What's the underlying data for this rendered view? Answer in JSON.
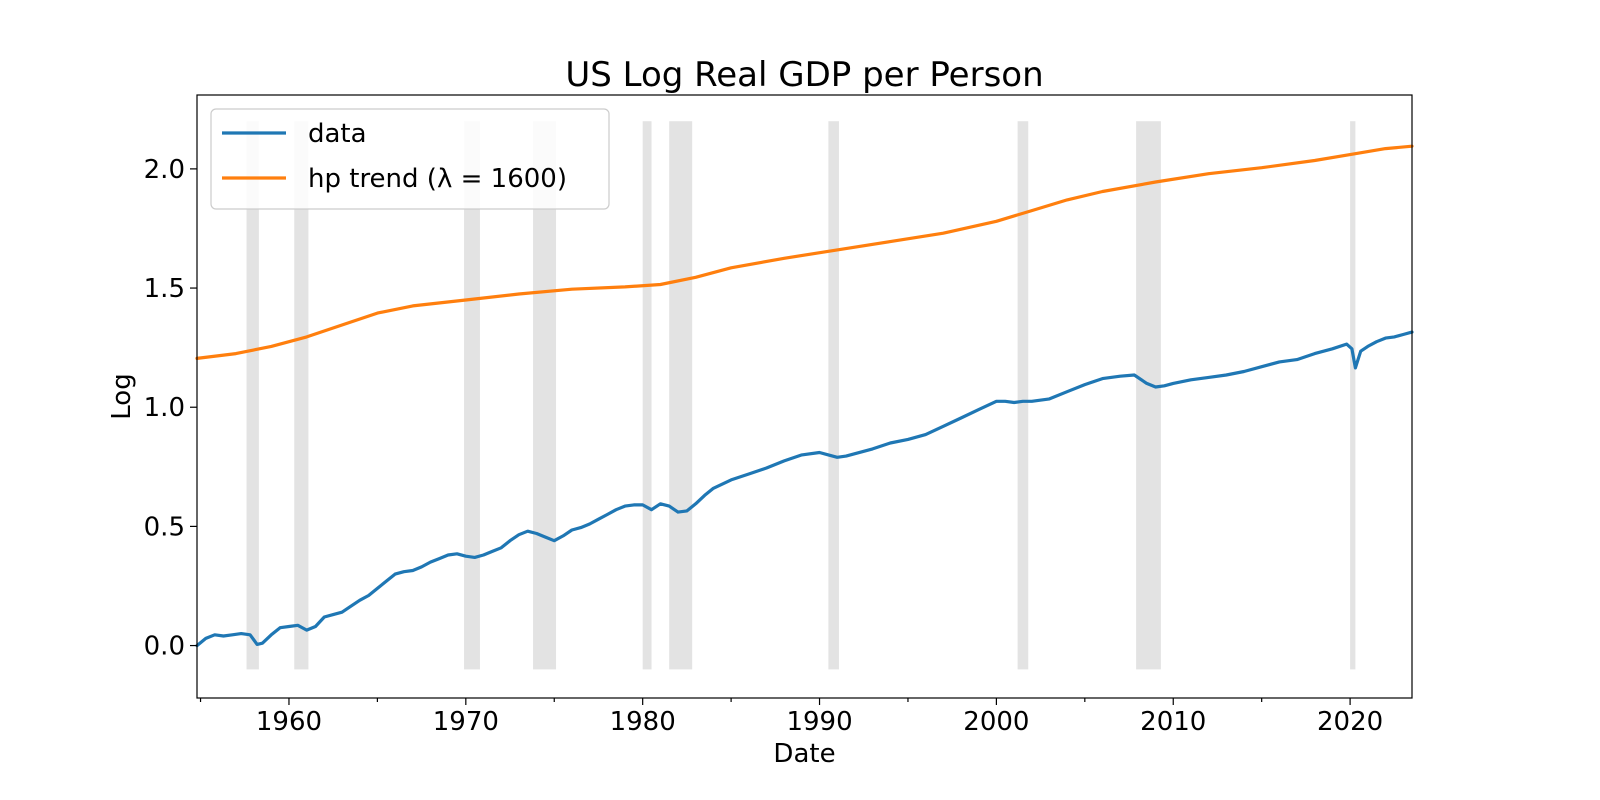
{
  "chart_data": {
    "type": "line",
    "title": "US Log Real GDP per Person",
    "xlabel": "Date",
    "ylabel": "Log",
    "xlim": [
      1954.8,
      2023.5
    ],
    "ylim": [
      -0.22,
      2.31
    ],
    "grid": false,
    "legend_position": "upper-left",
    "x_ticks": [
      1960,
      1970,
      1980,
      1990,
      2000,
      2010,
      2020
    ],
    "x_tick_labels": [
      "1960",
      "1970",
      "1980",
      "1990",
      "2000",
      "2010",
      "2020"
    ],
    "y_ticks": [
      0.0,
      0.5,
      1.0,
      1.5,
      2.0
    ],
    "y_tick_labels": [
      "0.0",
      "0.5",
      "1.0",
      "1.5",
      "2.0"
    ],
    "recession_bands": [
      [
        1957.6,
        1958.3
      ],
      [
        1960.3,
        1961.1
      ],
      [
        1969.9,
        1970.8
      ],
      [
        1973.8,
        1975.1
      ],
      [
        1980.0,
        1980.5
      ],
      [
        1981.5,
        1982.8
      ],
      [
        1990.5,
        1991.1
      ],
      [
        2001.2,
        2001.8
      ],
      [
        2007.9,
        2009.3
      ],
      [
        2020.0,
        2020.3
      ]
    ],
    "series": [
      {
        "name": "data",
        "color": "#1f77b4",
        "x": [
          1954.8,
          1955.3,
          1955.8,
          1956.3,
          1956.8,
          1957.3,
          1957.8,
          1958.2,
          1958.5,
          1959.0,
          1959.5,
          1960.0,
          1960.5,
          1961.0,
          1961.5,
          1962.0,
          1962.5,
          1963.0,
          1963.5,
          1964.0,
          1964.5,
          1965.0,
          1965.5,
          1966.0,
          1966.5,
          1967.0,
          1967.5,
          1968.0,
          1968.5,
          1969.0,
          1969.5,
          1970.0,
          1970.5,
          1971.0,
          1971.5,
          1972.0,
          1972.5,
          1973.0,
          1973.5,
          1974.0,
          1974.5,
          1975.0,
          1975.5,
          1976.0,
          1976.5,
          1977.0,
          1977.5,
          1978.0,
          1978.5,
          1979.0,
          1979.5,
          1980.0,
          1980.5,
          1981.0,
          1981.5,
          1982.0,
          1982.5,
          1983.0,
          1983.5,
          1984.0,
          1985.0,
          1986.0,
          1987.0,
          1988.0,
          1989.0,
          1990.0,
          1990.5,
          1991.0,
          1991.5,
          1992.0,
          1993.0,
          1994.0,
          1995.0,
          1996.0,
          1997.0,
          1998.0,
          1999.0,
          2000.0,
          2000.5,
          2001.0,
          2001.5,
          2002.0,
          2003.0,
          2004.0,
          2005.0,
          2006.0,
          2007.0,
          2007.8,
          2008.5,
          2009.0,
          2009.5,
          2010.0,
          2011.0,
          2012.0,
          2013.0,
          2014.0,
          2015.0,
          2016.0,
          2017.0,
          2018.0,
          2019.0,
          2019.8,
          2020.1,
          2020.3,
          2020.6,
          2021.0,
          2021.5,
          2022.0,
          2022.5,
          2023.0,
          2023.5
        ],
        "values": [
          0.0,
          0.03,
          0.045,
          0.04,
          0.045,
          0.05,
          0.045,
          0.005,
          0.01,
          0.045,
          0.075,
          0.08,
          0.085,
          0.065,
          0.08,
          0.12,
          0.13,
          0.14,
          0.165,
          0.19,
          0.21,
          0.24,
          0.27,
          0.3,
          0.31,
          0.315,
          0.33,
          0.35,
          0.365,
          0.38,
          0.385,
          0.375,
          0.37,
          0.38,
          0.395,
          0.41,
          0.44,
          0.465,
          0.48,
          0.47,
          0.455,
          0.44,
          0.46,
          0.485,
          0.495,
          0.51,
          0.53,
          0.55,
          0.57,
          0.585,
          0.59,
          0.59,
          0.57,
          0.595,
          0.585,
          0.56,
          0.565,
          0.595,
          0.63,
          0.66,
          0.695,
          0.72,
          0.745,
          0.775,
          0.8,
          0.81,
          0.8,
          0.79,
          0.795,
          0.805,
          0.825,
          0.85,
          0.865,
          0.885,
          0.92,
          0.955,
          0.99,
          1.025,
          1.025,
          1.02,
          1.025,
          1.025,
          1.035,
          1.065,
          1.095,
          1.12,
          1.13,
          1.135,
          1.1,
          1.085,
          1.09,
          1.1,
          1.115,
          1.125,
          1.135,
          1.15,
          1.17,
          1.19,
          1.2,
          1.225,
          1.245,
          1.265,
          1.245,
          1.165,
          1.235,
          1.255,
          1.275,
          1.29,
          1.295,
          1.305,
          1.315
        ]
      },
      {
        "name": "hp trend (λ = 1600)",
        "color": "#ff7f0e",
        "x": [
          1954.8,
          1957.0,
          1959.0,
          1961.0,
          1963.0,
          1965.0,
          1967.0,
          1970.0,
          1973.0,
          1976.0,
          1979.0,
          1981.0,
          1983.0,
          1985.0,
          1988.0,
          1991.0,
          1994.0,
          1997.0,
          2000.0,
          2002.0,
          2004.0,
          2006.0,
          2009.0,
          2012.0,
          2015.0,
          2018.0,
          2020.0,
          2022.0,
          2023.5
        ],
        "values": [
          1.205,
          1.225,
          1.255,
          1.295,
          1.345,
          1.395,
          1.425,
          1.45,
          1.475,
          1.495,
          1.505,
          1.515,
          1.545,
          1.585,
          1.625,
          1.66,
          1.695,
          1.73,
          1.78,
          1.825,
          1.87,
          1.905,
          1.945,
          1.98,
          2.005,
          2.035,
          2.06,
          2.085,
          2.095
        ]
      }
    ]
  }
}
